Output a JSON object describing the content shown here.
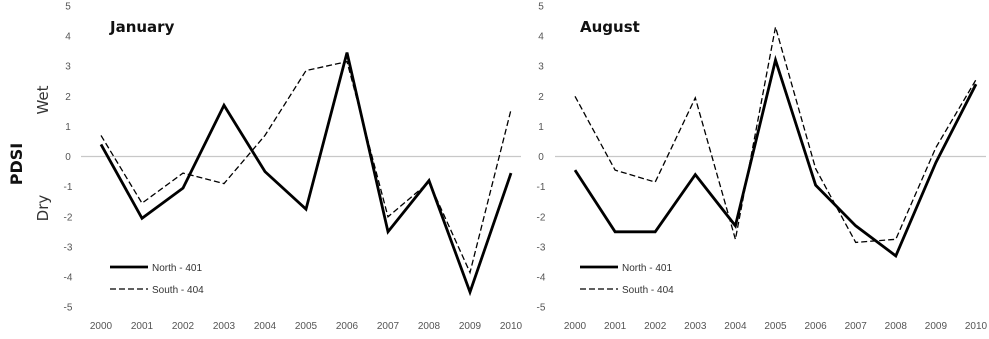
{
  "figure": {
    "ylabel": "PDSI",
    "wet_label": "Wet",
    "dry_label": "Dry"
  },
  "chart_data": [
    {
      "type": "line",
      "title": "January",
      "xlabel": "",
      "ylabel": "PDSI",
      "categories": [
        "2000",
        "2001",
        "2002",
        "2003",
        "2004",
        "2005",
        "2006",
        "2007",
        "2008",
        "2009",
        "2010"
      ],
      "ylim": [
        -5,
        5
      ],
      "yticks": [
        "-5",
        "-4",
        "-3",
        "-2",
        "-1",
        "0",
        "1",
        "2",
        "3",
        "4",
        "5"
      ],
      "grid": false,
      "legend_position": "bottom-left",
      "series": [
        {
          "name": "North - 401",
          "style": "solid",
          "color": "#000000",
          "values": [
            0.4,
            -2.05,
            -1.05,
            1.7,
            -0.5,
            -1.75,
            3.45,
            -2.5,
            -0.8,
            -4.5,
            -0.55
          ]
        },
        {
          "name": "South - 404",
          "style": "dashed",
          "color": "#000000",
          "values": [
            0.7,
            -1.55,
            -0.55,
            -0.9,
            0.7,
            2.85,
            3.15,
            -2.0,
            -0.85,
            -3.85,
            1.55
          ]
        }
      ]
    },
    {
      "type": "line",
      "title": "August",
      "xlabel": "",
      "ylabel": "",
      "categories": [
        "2000",
        "2001",
        "2002",
        "2003",
        "2004",
        "2005",
        "2006",
        "2007",
        "2008",
        "2009",
        "2010"
      ],
      "ylim": [
        -5,
        5
      ],
      "yticks": [
        "-5",
        "-4",
        "-3",
        "-2",
        "-1",
        "0",
        "1",
        "2",
        "3",
        "4",
        "5"
      ],
      "grid": false,
      "legend_position": "bottom-left",
      "series": [
        {
          "name": "North - 401",
          "style": "solid",
          "color": "#000000",
          "values": [
            -0.45,
            -2.5,
            -2.5,
            -0.6,
            -2.3,
            3.2,
            -0.95,
            -2.3,
            -3.3,
            -0.2,
            2.4
          ]
        },
        {
          "name": "South - 404",
          "style": "dashed",
          "color": "#000000",
          "values": [
            2.0,
            -0.45,
            -0.85,
            1.95,
            -2.75,
            4.3,
            -0.4,
            -2.85,
            -2.75,
            0.3,
            2.55
          ]
        }
      ]
    }
  ]
}
